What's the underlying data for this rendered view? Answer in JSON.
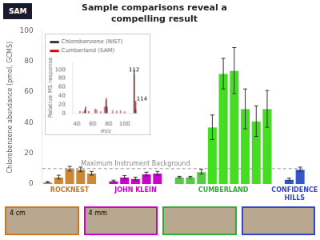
{
  "chart_data": [
    {
      "type": "bar",
      "title": "Sample comparisons reveal a\ncompelling result",
      "badge": "SAM",
      "ylabel": "Chlorobenzene abundance (pmol, GCMS)",
      "ylim": [
        0,
        100
      ],
      "yticks": [
        0,
        20,
        40,
        60,
        80,
        100
      ],
      "grid": false,
      "tick_labels": "y",
      "groups": [
        {
          "label": "ROCKNEST",
          "color": "#cc7722",
          "values": [
            1.2,
            4.5,
            10.0,
            9.5,
            7.0
          ],
          "errors": [
            0.4,
            1.2,
            1.5,
            1.5,
            1.2
          ],
          "colors": [
            "#cc8833",
            "#cc8833",
            "#cc8833",
            "#cc8833",
            "#cc8833"
          ]
        },
        {
          "label": "JOHN KLEIN",
          "color": "#cc00cc",
          "values": [
            2.0,
            4.5,
            3.5,
            6.5,
            7.0
          ],
          "errors": [
            0.5,
            1.0,
            1.0,
            1.2,
            1.2
          ],
          "colors": [
            "#cc00cc",
            "#cc00cc",
            "#cc00cc",
            "#cc00cc",
            "#cc00cc"
          ]
        },
        {
          "label": "CUMBERLAND",
          "color": "#33aa33",
          "values": [
            4.5,
            4.5,
            8.0,
            37.0,
            72.0,
            74.0,
            49.0,
            41.0,
            49.0
          ],
          "errors": [
            0.5,
            0.5,
            1.5,
            8.0,
            10.0,
            15.0,
            13.0,
            10.0,
            12.0
          ],
          "colors": [
            "#55cc44",
            "#55cc44",
            "#55cc44",
            "#44dd22",
            "#44dd22",
            "#44dd22",
            "#44dd22",
            "#44dd22",
            "#44dd22"
          ]
        },
        {
          "label": "CONFIDENCE\nHILLS",
          "color": "#3344cc",
          "values": [
            3.0,
            9.5
          ],
          "errors": [
            0.8,
            1.5
          ],
          "colors": [
            "#3355cc",
            "#3355cc"
          ]
        }
      ],
      "reference_line": {
        "y": 10,
        "label": "Maximum Instrument Background",
        "line_style": "dashed"
      },
      "image_labels": [
        "4 cm",
        "4 mm"
      ]
    },
    {
      "type": "stem",
      "xlabel": "m/z",
      "ylabel": "Relative MS response",
      "xlim": [
        35,
        118
      ],
      "ylim": [
        0,
        118
      ],
      "xticks": [
        40,
        60,
        80,
        100
      ],
      "yticks": [
        0,
        20,
        40,
        60,
        80,
        100
      ],
      "grid": false,
      "legend": "upper left",
      "series": [
        {
          "color": "#555555",
          "x": [
            44,
            48,
            65,
            70,
            85,
            90,
            95,
            100
          ],
          "values": [
            5,
            3,
            8,
            4,
            3,
            4,
            5,
            3
          ]
        },
        {
          "color": "#cc2222",
          "x": [
            44,
            48,
            65,
            70,
            85,
            90,
            95,
            100
          ],
          "values": [
            5,
            4,
            8,
            5,
            8,
            6,
            7,
            5
          ]
        },
        {
          "name": "Chlorobenzene (NIST)",
          "color": "#333333",
          "x": [
            51,
            77,
            78,
            112,
            114
          ],
          "values": [
            15,
            30,
            15,
            100,
            8
          ]
        },
        {
          "name": "Cumberland (SAM)",
          "color": "#dd0000",
          "x": [
            50,
            55,
            63,
            75,
            77,
            112,
            114
          ],
          "values": [
            8,
            5,
            10,
            15,
            35,
            90,
            28
          ]
        }
      ],
      "annotations": [
        {
          "text": "112",
          "x": 112,
          "y": 92
        },
        {
          "text": "114",
          "x": 115,
          "y": 26
        }
      ]
    }
  ]
}
